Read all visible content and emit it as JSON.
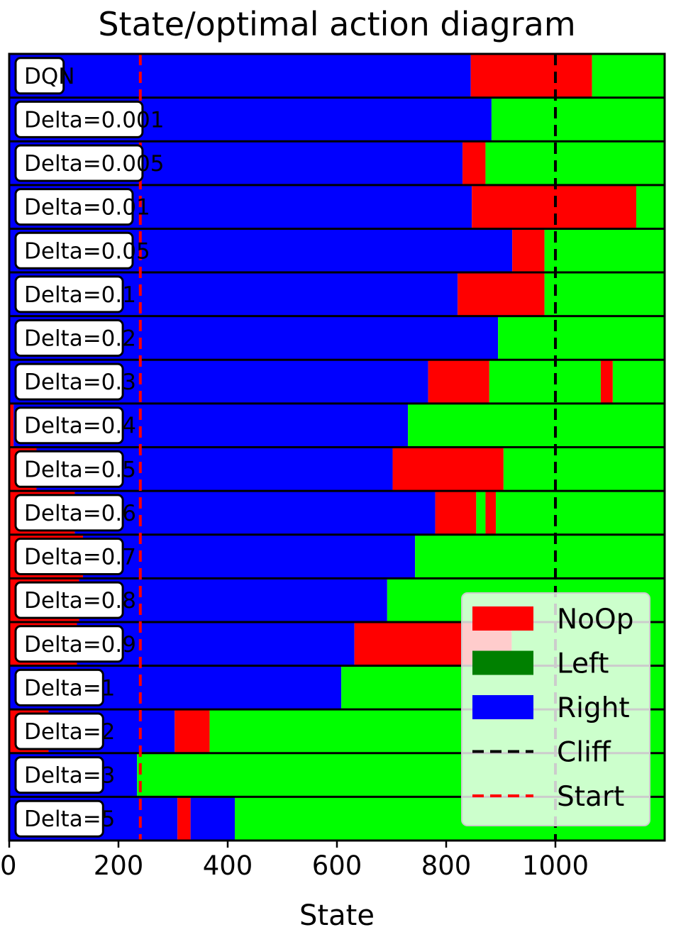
{
  "chart_data": {
    "type": "bar",
    "title": "State/optimal action diagram",
    "xlabel": "State",
    "ylabel": "",
    "xlim": [
      0,
      1200
    ],
    "x_ticks": [
      "0",
      "200",
      "400",
      "600",
      "800",
      "1000"
    ],
    "x_tick_values": [
      0,
      200,
      400,
      600,
      800,
      1000
    ],
    "grid": true,
    "legend_position": "bottom-right",
    "colors": {
      "NoOp": "#ff0000",
      "Left_legend": "#008000",
      "Left": "#00ff00",
      "Right": "#0000ff"
    },
    "lines": [
      {
        "name": "Cliff",
        "x": 1000,
        "color": "#000000",
        "style": "dashed"
      },
      {
        "name": "Start",
        "x": 240,
        "color": "#ff0000",
        "style": "dashed"
      }
    ],
    "legend": [
      {
        "label": "NoOp",
        "kind": "patch",
        "color": "#ff0000"
      },
      {
        "label": "Left",
        "kind": "patch",
        "color": "#008000"
      },
      {
        "label": "Right",
        "kind": "patch",
        "color": "#0000ff"
      },
      {
        "label": "Cliff",
        "kind": "line",
        "color": "#000000"
      },
      {
        "label": "Start",
        "kind": "line",
        "color": "#ff0000"
      }
    ],
    "rows": [
      {
        "label": "DQN",
        "segments": [
          {
            "action": "Right",
            "start": 0,
            "end": 845
          },
          {
            "action": "NoOp",
            "start": 845,
            "end": 1067
          },
          {
            "action": "Left",
            "start": 1067,
            "end": 1200
          }
        ]
      },
      {
        "label": "Delta=0.001",
        "segments": [
          {
            "action": "Right",
            "start": 0,
            "end": 883
          },
          {
            "action": "Left",
            "start": 883,
            "end": 1200
          }
        ]
      },
      {
        "label": "Delta=0.005",
        "segments": [
          {
            "action": "Right",
            "start": 0,
            "end": 830
          },
          {
            "action": "NoOp",
            "start": 830,
            "end": 872
          },
          {
            "action": "Left",
            "start": 872,
            "end": 1200
          }
        ]
      },
      {
        "label": "Delta=0.01",
        "segments": [
          {
            "action": "Right",
            "start": 0,
            "end": 847
          },
          {
            "action": "NoOp",
            "start": 847,
            "end": 1148
          },
          {
            "action": "Left",
            "start": 1148,
            "end": 1200
          }
        ]
      },
      {
        "label": "Delta=0.05",
        "segments": [
          {
            "action": "Right",
            "start": 0,
            "end": 921
          },
          {
            "action": "NoOp",
            "start": 921,
            "end": 980
          },
          {
            "action": "Left",
            "start": 980,
            "end": 1200
          }
        ]
      },
      {
        "label": "Delta=0.1",
        "segments": [
          {
            "action": "Right",
            "start": 0,
            "end": 821
          },
          {
            "action": "NoOp",
            "start": 821,
            "end": 980
          },
          {
            "action": "Left",
            "start": 980,
            "end": 1200
          }
        ]
      },
      {
        "label": "Delta=0.2",
        "segments": [
          {
            "action": "Right",
            "start": 0,
            "end": 895
          },
          {
            "action": "Left",
            "start": 895,
            "end": 1200
          }
        ]
      },
      {
        "label": "Delta=0.3",
        "segments": [
          {
            "action": "Right",
            "start": 0,
            "end": 767
          },
          {
            "action": "NoOp",
            "start": 767,
            "end": 879
          },
          {
            "action": "Left",
            "start": 879,
            "end": 1083
          },
          {
            "action": "NoOp",
            "start": 1083,
            "end": 1105
          },
          {
            "action": "Left",
            "start": 1105,
            "end": 1200
          }
        ]
      },
      {
        "label": "Delta=0.4",
        "segments": [
          {
            "action": "NoOp",
            "start": 0,
            "end": 8
          },
          {
            "action": "Right",
            "start": 8,
            "end": 730
          },
          {
            "action": "Left",
            "start": 730,
            "end": 1200
          }
        ]
      },
      {
        "label": "Delta=0.5",
        "segments": [
          {
            "action": "NoOp",
            "start": 0,
            "end": 50
          },
          {
            "action": "Right",
            "start": 50,
            "end": 702
          },
          {
            "action": "NoOp",
            "start": 702,
            "end": 905
          },
          {
            "action": "Left",
            "start": 905,
            "end": 1200
          }
        ]
      },
      {
        "label": "Delta=0.6",
        "segments": [
          {
            "action": "NoOp",
            "start": 0,
            "end": 120
          },
          {
            "action": "Right",
            "start": 120,
            "end": 780
          },
          {
            "action": "NoOp",
            "start": 780,
            "end": 855
          },
          {
            "action": "Left",
            "start": 855,
            "end": 872
          },
          {
            "action": "NoOp",
            "start": 872,
            "end": 891
          },
          {
            "action": "Left",
            "start": 891,
            "end": 1200
          }
        ]
      },
      {
        "label": "Delta=0.7",
        "segments": [
          {
            "action": "NoOp",
            "start": 0,
            "end": 135
          },
          {
            "action": "Right",
            "start": 135,
            "end": 743
          },
          {
            "action": "Left",
            "start": 743,
            "end": 1200
          }
        ]
      },
      {
        "label": "Delta=0.8",
        "segments": [
          {
            "action": "NoOp",
            "start": 0,
            "end": 128
          },
          {
            "action": "Right",
            "start": 128,
            "end": 692
          },
          {
            "action": "Left",
            "start": 692,
            "end": 1200
          }
        ]
      },
      {
        "label": "Delta=0.9",
        "segments": [
          {
            "action": "NoOp",
            "start": 0,
            "end": 124
          },
          {
            "action": "Right",
            "start": 124,
            "end": 632
          },
          {
            "action": "NoOp",
            "start": 632,
            "end": 920
          },
          {
            "action": "Left",
            "start": 920,
            "end": 1200
          }
        ]
      },
      {
        "label": "Delta=1",
        "segments": [
          {
            "action": "Right",
            "start": 0,
            "end": 608
          },
          {
            "action": "Left",
            "start": 608,
            "end": 1200
          }
        ]
      },
      {
        "label": "Delta=2",
        "segments": [
          {
            "action": "NoOp",
            "start": 0,
            "end": 72
          },
          {
            "action": "Right",
            "start": 72,
            "end": 303
          },
          {
            "action": "NoOp",
            "start": 303,
            "end": 367
          },
          {
            "action": "Left",
            "start": 367,
            "end": 1200
          }
        ]
      },
      {
        "label": "Delta=3",
        "segments": [
          {
            "action": "Right",
            "start": 0,
            "end": 234
          },
          {
            "action": "Left",
            "start": 234,
            "end": 1200
          }
        ]
      },
      {
        "label": "Delta=5",
        "segments": [
          {
            "action": "Right",
            "start": 0,
            "end": 308
          },
          {
            "action": "NoOp",
            "start": 308,
            "end": 332
          },
          {
            "action": "Right",
            "start": 332,
            "end": 413
          },
          {
            "action": "Left",
            "start": 413,
            "end": 1200
          }
        ]
      }
    ]
  }
}
